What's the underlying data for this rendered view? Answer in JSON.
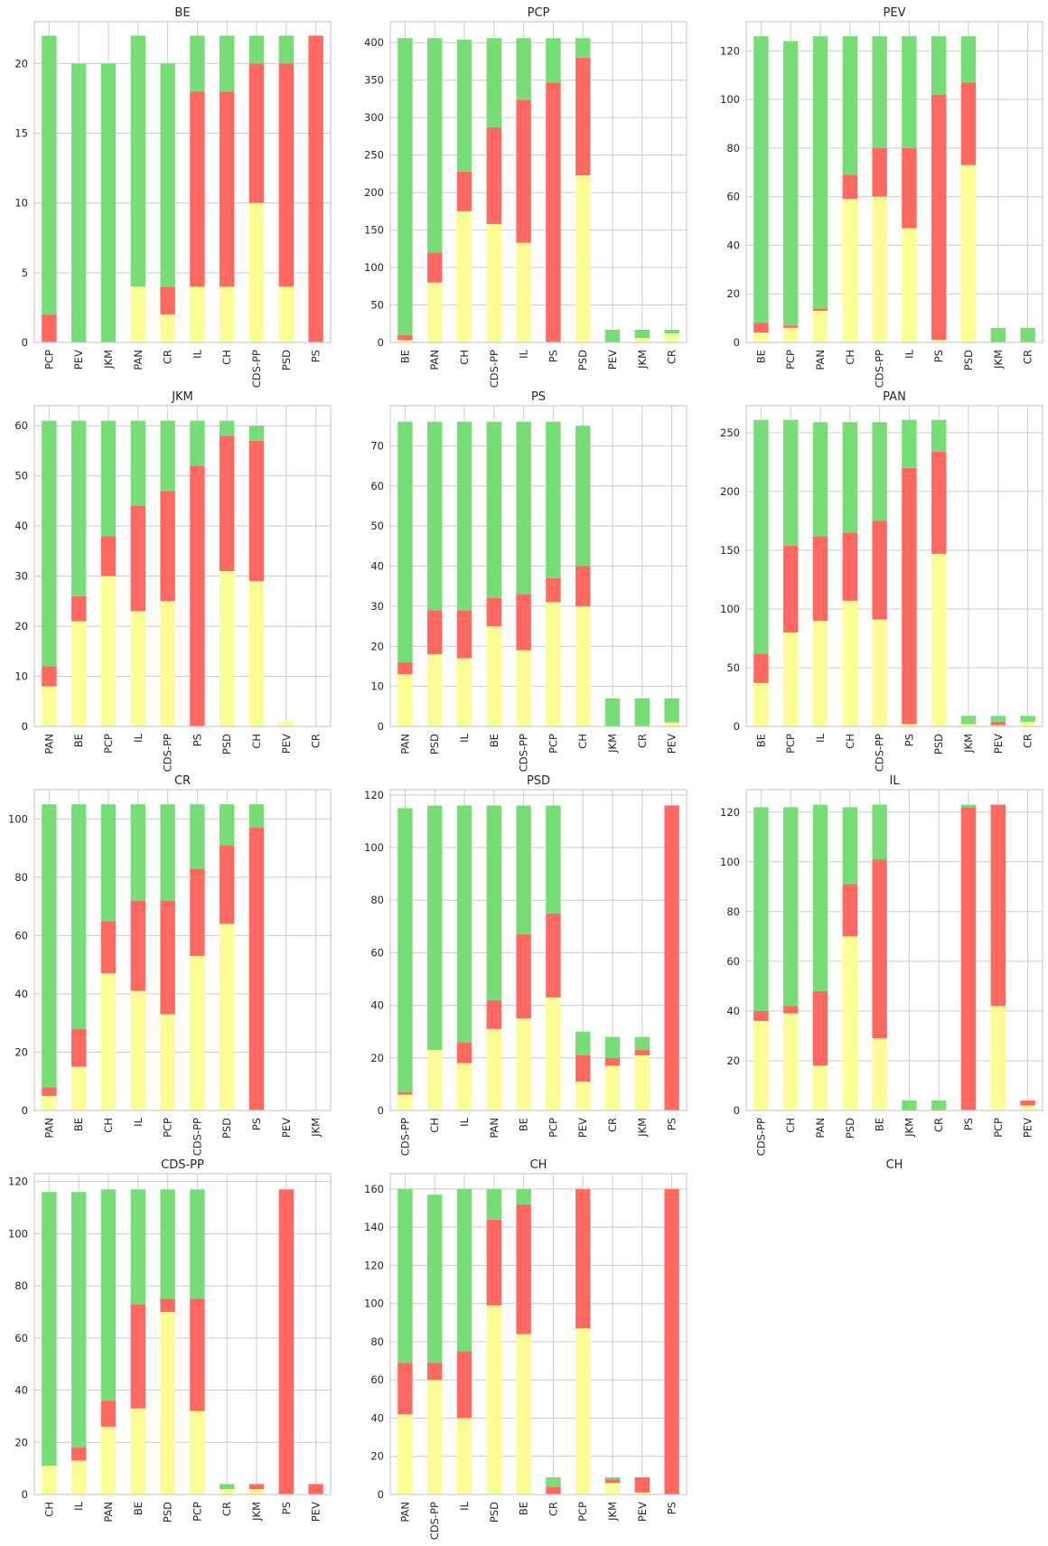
{
  "colors": {
    "yellow": "#fdfd96",
    "red": "#ff6961",
    "green": "#77dd77",
    "grid": "#cccccc",
    "frame": "#cccccc",
    "text": "#262626"
  },
  "chart_data": [
    {
      "type": "bar",
      "stacked": true,
      "title": "BE",
      "ylim": [
        0,
        23
      ],
      "yticks": [
        0,
        5,
        10,
        15,
        20
      ],
      "categories": [
        "PCP",
        "PEV",
        "JKM",
        "PAN",
        "CR",
        "IL",
        "CH",
        "CDS-PP",
        "PSD",
        "PS"
      ],
      "series": [
        {
          "values": [
            0,
            0,
            0,
            4,
            2,
            4,
            4,
            10,
            4,
            0
          ],
          "color": "yellow"
        },
        {
          "values": [
            2,
            0,
            0,
            0,
            2,
            14,
            14,
            10,
            16,
            22
          ],
          "color": "red"
        },
        {
          "values": [
            20,
            20,
            20,
            18,
            16,
            4,
            4,
            2,
            2,
            0
          ],
          "color": "green"
        }
      ]
    },
    {
      "type": "bar",
      "stacked": true,
      "title": "PCP",
      "ylim": [
        0,
        428
      ],
      "yticks": [
        0,
        50,
        100,
        150,
        200,
        250,
        300,
        350,
        400
      ],
      "categories": [
        "BE",
        "PAN",
        "CH",
        "CDS-PP",
        "IL",
        "PS",
        "PSD",
        "PEV",
        "JKM",
        "CR"
      ],
      "series": [
        {
          "values": [
            3,
            80,
            175,
            158,
            133,
            0,
            223,
            0,
            6,
            12
          ],
          "color": "yellow"
        },
        {
          "values": [
            7,
            40,
            53,
            129,
            191,
            347,
            157,
            0,
            0,
            0
          ],
          "color": "red"
        },
        {
          "values": [
            396,
            286,
            176,
            119,
            82,
            59,
            26,
            17,
            11,
            5
          ],
          "color": "green"
        }
      ]
    },
    {
      "type": "bar",
      "stacked": true,
      "title": "PEV",
      "ylim": [
        0,
        132
      ],
      "yticks": [
        0,
        20,
        40,
        60,
        80,
        100,
        120
      ],
      "categories": [
        "BE",
        "PCP",
        "PAN",
        "CH",
        "CDS-PP",
        "IL",
        "PS",
        "PSD",
        "JKM",
        "CR"
      ],
      "series": [
        {
          "values": [
            4,
            6,
            13,
            59,
            60,
            47,
            1,
            73,
            0,
            0
          ],
          "color": "yellow"
        },
        {
          "values": [
            4,
            1,
            1,
            10,
            20,
            33,
            101,
            34,
            0,
            0
          ],
          "color": "red"
        },
        {
          "values": [
            118,
            117,
            112,
            57,
            46,
            46,
            24,
            19,
            6,
            6
          ],
          "color": "green"
        }
      ]
    },
    {
      "type": "bar",
      "stacked": true,
      "title": "JKM",
      "ylim": [
        0,
        64
      ],
      "yticks": [
        0,
        10,
        20,
        30,
        40,
        50,
        60
      ],
      "categories": [
        "PAN",
        "BE",
        "PCP",
        "IL",
        "CDS-PP",
        "PS",
        "PSD",
        "CH",
        "PEV",
        "CR"
      ],
      "series": [
        {
          "values": [
            8,
            21,
            30,
            23,
            25,
            0,
            31,
            29,
            1,
            0
          ],
          "color": "yellow"
        },
        {
          "values": [
            4,
            5,
            8,
            21,
            22,
            52,
            27,
            28,
            0,
            0
          ],
          "color": "red"
        },
        {
          "values": [
            49,
            35,
            23,
            17,
            14,
            9,
            3,
            3,
            0,
            0
          ],
          "color": "green"
        }
      ]
    },
    {
      "type": "bar",
      "stacked": true,
      "title": "PS",
      "ylim": [
        0,
        80
      ],
      "yticks": [
        0,
        10,
        20,
        30,
        40,
        50,
        60,
        70
      ],
      "categories": [
        "PAN",
        "PSD",
        "IL",
        "BE",
        "CDS-PP",
        "PCP",
        "CH",
        "JKM",
        "CR",
        "PEV"
      ],
      "series": [
        {
          "values": [
            13,
            18,
            17,
            25,
            19,
            31,
            30,
            0,
            0,
            1
          ],
          "color": "yellow"
        },
        {
          "values": [
            3,
            11,
            12,
            7,
            14,
            6,
            10,
            0,
            0,
            0
          ],
          "color": "red"
        },
        {
          "values": [
            60,
            47,
            47,
            44,
            43,
            39,
            35,
            7,
            7,
            6
          ],
          "color": "green"
        }
      ]
    },
    {
      "type": "bar",
      "stacked": true,
      "title": "PAN",
      "ylim": [
        0,
        273
      ],
      "yticks": [
        0,
        50,
        100,
        150,
        200,
        250
      ],
      "categories": [
        "BE",
        "PCP",
        "IL",
        "CH",
        "CDS-PP",
        "PS",
        "PSD",
        "JKM",
        "PEV",
        "CR"
      ],
      "series": [
        {
          "values": [
            37,
            80,
            90,
            107,
            91,
            2,
            147,
            2,
            1,
            4
          ],
          "color": "yellow"
        },
        {
          "values": [
            25,
            74,
            72,
            58,
            84,
            218,
            87,
            0,
            3,
            0
          ],
          "color": "red"
        },
        {
          "values": [
            199,
            107,
            97,
            94,
            84,
            41,
            27,
            7,
            5,
            5
          ],
          "color": "green"
        }
      ]
    },
    {
      "type": "bar",
      "stacked": true,
      "title": "CR",
      "ylim": [
        0,
        110
      ],
      "yticks": [
        0,
        20,
        40,
        60,
        80,
        100
      ],
      "categories": [
        "PAN",
        "BE",
        "CH",
        "IL",
        "PCP",
        "CDS-PP",
        "PSD",
        "PS",
        "PEV",
        "JKM"
      ],
      "series": [
        {
          "values": [
            5,
            15,
            47,
            41,
            33,
            53,
            64,
            0,
            0,
            0
          ],
          "color": "yellow"
        },
        {
          "values": [
            3,
            13,
            18,
            31,
            39,
            30,
            27,
            97,
            0,
            0
          ],
          "color": "red"
        },
        {
          "values": [
            97,
            77,
            40,
            33,
            33,
            22,
            14,
            8,
            0,
            0
          ],
          "color": "green"
        }
      ]
    },
    {
      "type": "bar",
      "stacked": true,
      "title": "PSD",
      "ylim": [
        0,
        122
      ],
      "yticks": [
        0,
        20,
        40,
        60,
        80,
        100,
        120
      ],
      "categories": [
        "CDS-PP",
        "CH",
        "IL",
        "PAN",
        "BE",
        "PCP",
        "PEV",
        "CR",
        "JKM",
        "PS"
      ],
      "series": [
        {
          "values": [
            6,
            23,
            18,
            31,
            35,
            43,
            11,
            17,
            21,
            0
          ],
          "color": "yellow"
        },
        {
          "values": [
            1,
            0,
            8,
            11,
            32,
            32,
            10,
            3,
            2,
            116
          ],
          "color": "red"
        },
        {
          "values": [
            108,
            93,
            90,
            74,
            49,
            41,
            9,
            8,
            5,
            0
          ],
          "color": "green"
        }
      ]
    },
    {
      "type": "bar",
      "stacked": true,
      "title": "IL",
      "ylim": [
        0,
        129
      ],
      "yticks": [
        0,
        20,
        40,
        60,
        80,
        100,
        120
      ],
      "categories": [
        "CDS-PP",
        "CH",
        "PAN",
        "PSD",
        "BE",
        "JKM",
        "CR",
        "PS",
        "PCP",
        "PEV"
      ],
      "series": [
        {
          "values": [
            36,
            39,
            18,
            70,
            29,
            0,
            0,
            0,
            42,
            2
          ],
          "color": "yellow"
        },
        {
          "values": [
            4,
            3,
            30,
            21,
            72,
            0,
            0,
            122,
            81,
            2
          ],
          "color": "red"
        },
        {
          "values": [
            82,
            80,
            75,
            31,
            22,
            4,
            4,
            1,
            0,
            0
          ],
          "color": "green"
        }
      ]
    },
    {
      "type": "bar",
      "stacked": true,
      "title": "CDS-PP",
      "ylim": [
        0,
        123
      ],
      "yticks": [
        0,
        20,
        40,
        60,
        80,
        100,
        120
      ],
      "categories": [
        "CH",
        "IL",
        "PAN",
        "BE",
        "PSD",
        "PCP",
        "CR",
        "JKM",
        "PS",
        "PEV"
      ],
      "series": [
        {
          "values": [
            11,
            13,
            26,
            33,
            70,
            32,
            2,
            2,
            0,
            0
          ],
          "color": "yellow"
        },
        {
          "values": [
            0,
            5,
            10,
            40,
            5,
            43,
            0,
            2,
            117,
            4
          ],
          "color": "red"
        },
        {
          "values": [
            105,
            98,
            81,
            44,
            42,
            42,
            2,
            0,
            0,
            0
          ],
          "color": "green"
        }
      ]
    },
    {
      "type": "bar",
      "stacked": true,
      "title": "CH",
      "ylim": [
        0,
        168
      ],
      "yticks": [
        0,
        20,
        40,
        60,
        80,
        100,
        120,
        140,
        160
      ],
      "categories": [
        "PAN",
        "CDS-PP",
        "IL",
        "PSD",
        "BE",
        "CR",
        "PCP",
        "JKM",
        "PEV",
        "PS"
      ],
      "series": [
        {
          "values": [
            42,
            60,
            40,
            99,
            84,
            0,
            87,
            6,
            1,
            0
          ],
          "color": "yellow"
        },
        {
          "values": [
            27,
            9,
            35,
            45,
            68,
            4,
            73,
            2,
            8,
            160
          ],
          "color": "red"
        },
        {
          "values": [
            91,
            88,
            85,
            16,
            8,
            5,
            0,
            1,
            0,
            0
          ],
          "color": "green"
        }
      ]
    },
    {
      "type": "empty",
      "title": "CH"
    }
  ]
}
